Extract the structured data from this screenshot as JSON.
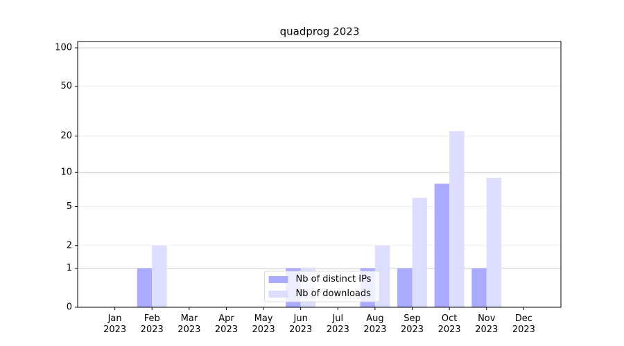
{
  "chart_data": {
    "type": "bar",
    "title": "quadprog 2023",
    "categories": [
      "Jan\n2023",
      "Feb\n2023",
      "Mar\n2023",
      "Apr\n2023",
      "May\n2023",
      "Jun\n2023",
      "Jul\n2023",
      "Aug\n2023",
      "Sep\n2023",
      "Oct\n2023",
      "Nov\n2023",
      "Dec\n2023"
    ],
    "series": [
      {
        "name": "Nb of distinct IPs",
        "color": "#aaaaff",
        "values": [
          0,
          1,
          0,
          0,
          0,
          1,
          0,
          1,
          1,
          8,
          1,
          0
        ]
      },
      {
        "name": "Nb of downloads",
        "color": "#ddddff",
        "values": [
          0,
          2,
          0,
          0,
          0,
          1,
          0,
          2,
          6,
          22,
          9,
          0
        ]
      }
    ],
    "yscale": "log1p",
    "ylim": [
      0,
      112
    ],
    "yticks": [
      0,
      1,
      2,
      5,
      10,
      20,
      50,
      100
    ],
    "grid": true,
    "legend": "lower center"
  }
}
